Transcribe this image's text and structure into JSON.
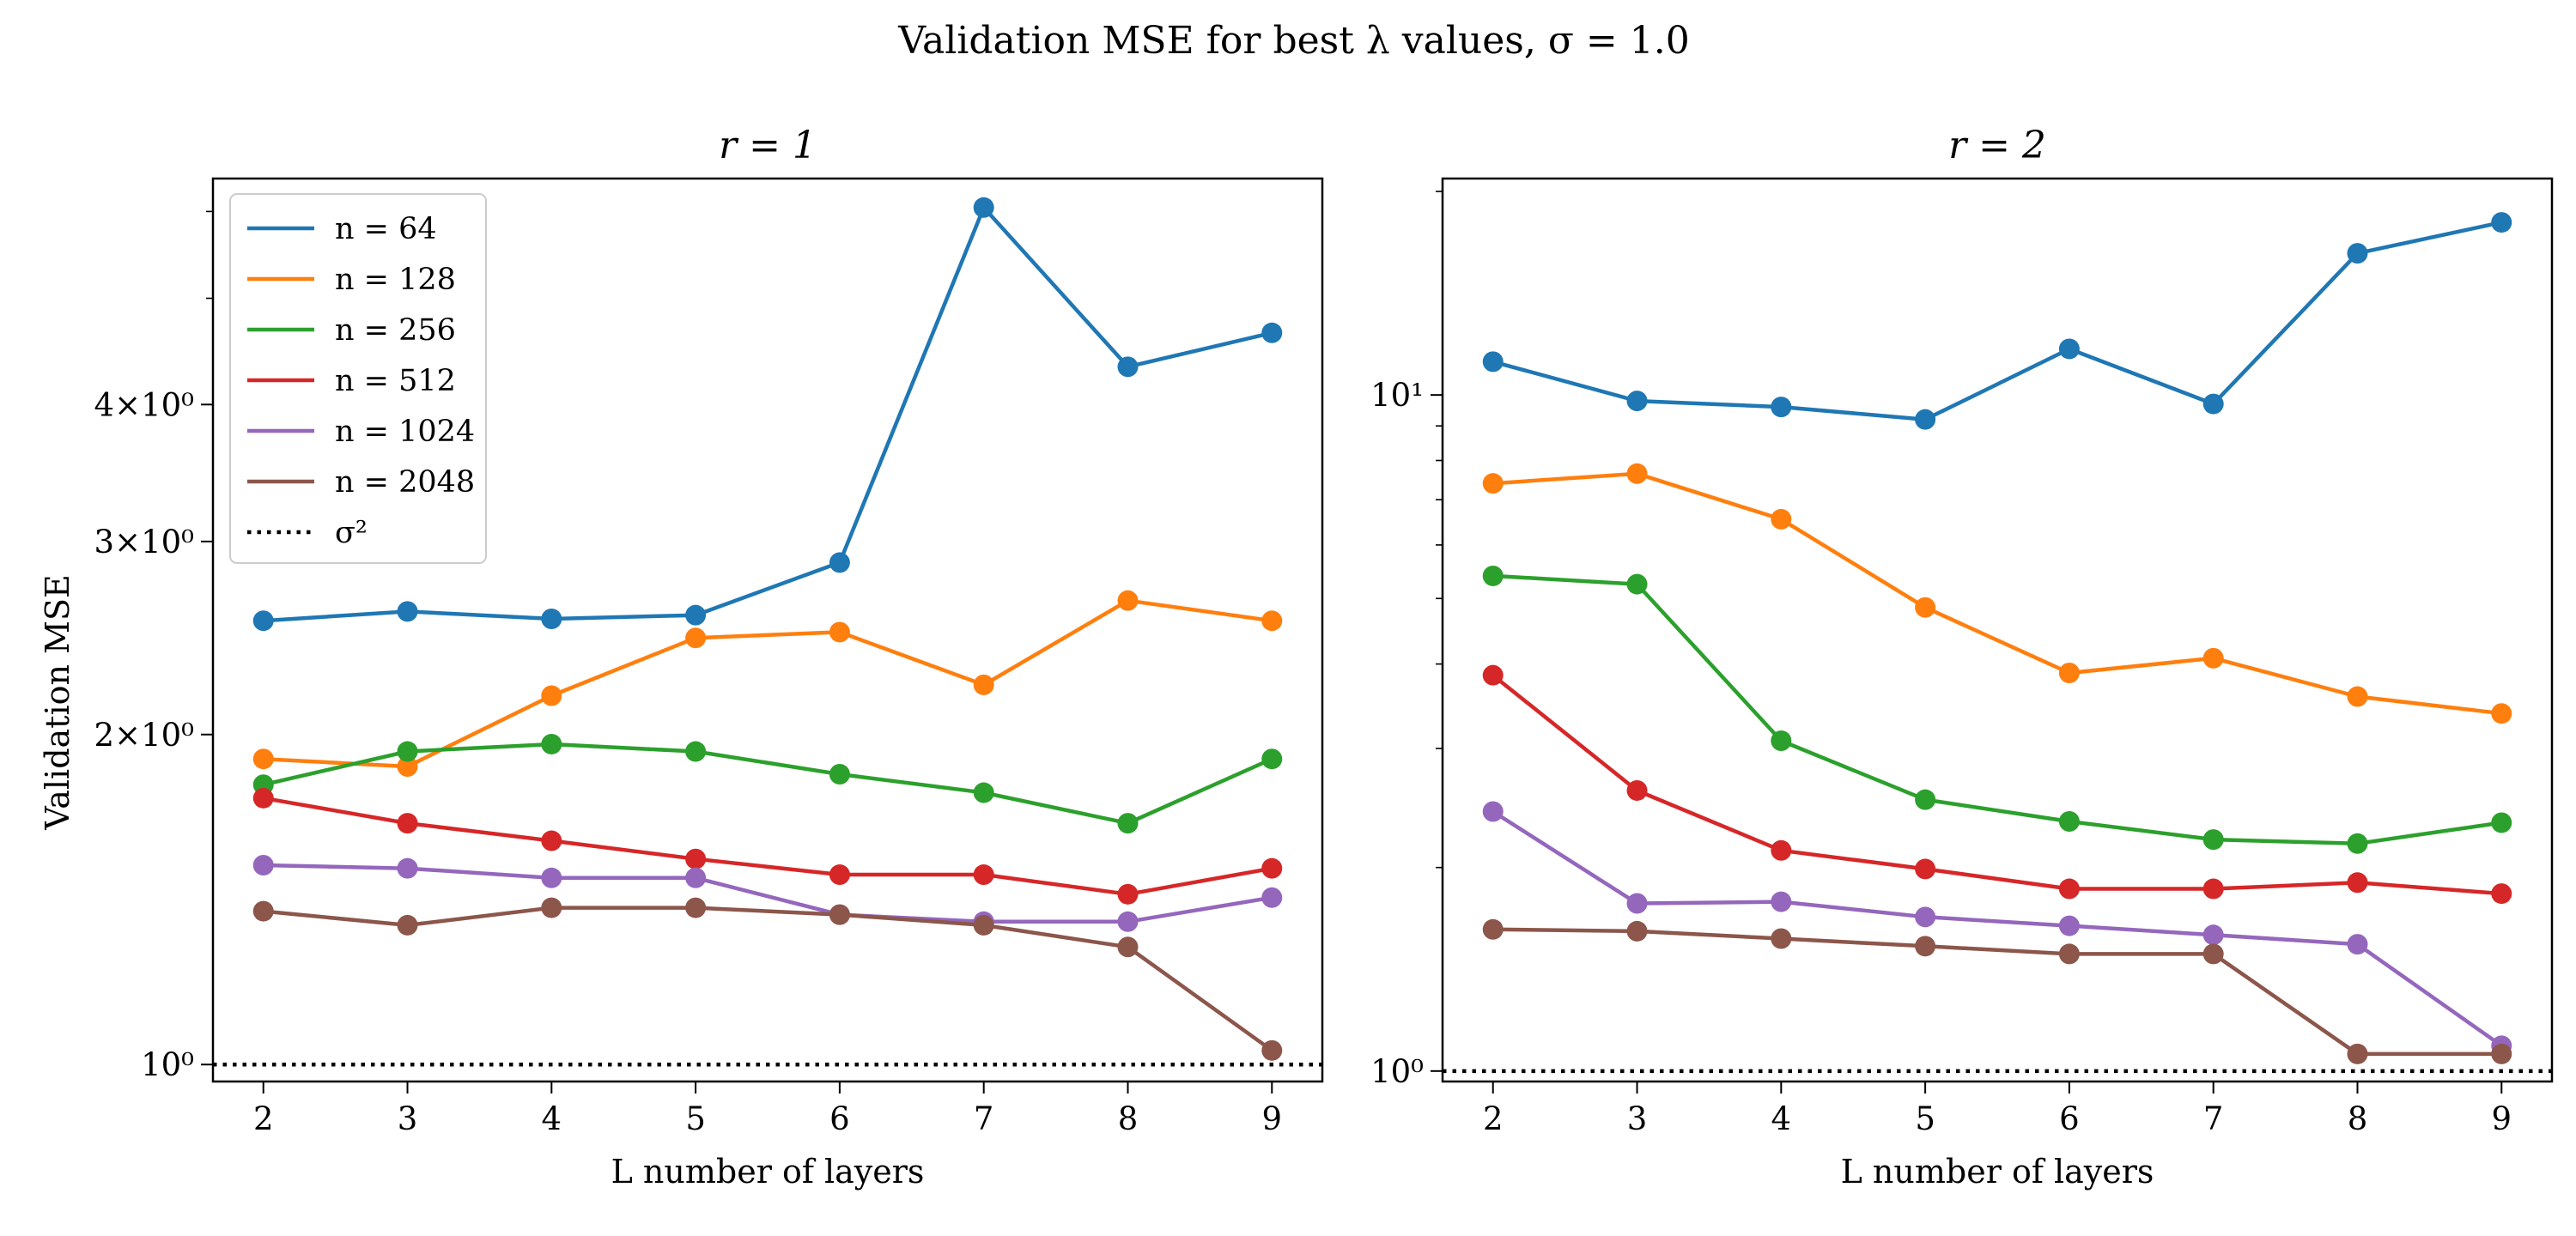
{
  "figure": {
    "title": "Validation MSE for best λ values, σ = 1.0",
    "ylabel": "Validation MSE"
  },
  "colors": {
    "n=64": "#1f77b4",
    "n=128": "#ff7f0e",
    "n=256": "#2ca02c",
    "n=512": "#d62728",
    "n=1024": "#9467bd",
    "n=2048": "#8c564b",
    "sigma2": "#000000"
  },
  "chart_data": [
    {
      "type": "line",
      "title": "r = 1",
      "xlabel": "L number of layers",
      "ylabel": "Validation MSE",
      "yscale": "log",
      "xlim": [
        1.65,
        9.35
      ],
      "ylim": [
        0.965,
        6.43
      ],
      "x": [
        2,
        3,
        4,
        5,
        6,
        7,
        8,
        9
      ],
      "xticks": [
        "2",
        "3",
        "4",
        "5",
        "6",
        "7",
        "8",
        "9"
      ],
      "yticks": [
        {
          "value": 1,
          "label": "10⁰"
        },
        {
          "value": 2,
          "label": "2×10⁰"
        },
        {
          "value": 3,
          "label": "3×10⁰"
        },
        {
          "value": 4,
          "label": "4×10⁰"
        }
      ],
      "minor_yticks": [
        5,
        6
      ],
      "series": [
        {
          "name": "n = 64",
          "color_key": "n=64",
          "values": [
            2.54,
            2.59,
            2.55,
            2.57,
            2.87,
            6.05,
            4.33,
            4.65
          ]
        },
        {
          "name": "n = 128",
          "color_key": "n=128",
          "values": [
            1.9,
            1.87,
            2.17,
            2.45,
            2.48,
            2.22,
            2.65,
            2.54
          ]
        },
        {
          "name": "n = 256",
          "color_key": "n=256",
          "values": [
            1.8,
            1.93,
            1.96,
            1.93,
            1.84,
            1.77,
            1.66,
            1.9
          ]
        },
        {
          "name": "n = 512",
          "color_key": "n=512",
          "values": [
            1.75,
            1.66,
            1.6,
            1.54,
            1.49,
            1.49,
            1.43,
            1.51
          ]
        },
        {
          "name": "n = 1024",
          "color_key": "n=1024",
          "values": [
            1.52,
            1.51,
            1.48,
            1.48,
            1.37,
            1.35,
            1.35,
            1.42
          ]
        },
        {
          "name": "n = 2048",
          "color_key": "n=2048",
          "values": [
            1.38,
            1.34,
            1.39,
            1.39,
            1.37,
            1.34,
            1.28,
            1.03
          ]
        }
      ],
      "reference_line": {
        "name": "σ²",
        "value": 1.0,
        "style": "dotted",
        "color_key": "sigma2"
      },
      "legend": "upper left"
    },
    {
      "type": "line",
      "title": "r = 2",
      "xlabel": "L number of layers",
      "ylabel": "",
      "yscale": "log",
      "xlim": [
        1.65,
        9.35
      ],
      "ylim": [
        0.965,
        20.9
      ],
      "x": [
        2,
        3,
        4,
        5,
        6,
        7,
        8,
        9
      ],
      "xticks": [
        "2",
        "3",
        "4",
        "5",
        "6",
        "7",
        "8",
        "9"
      ],
      "yticks": [
        {
          "value": 1,
          "label": "10⁰"
        },
        {
          "value": 10,
          "label": "10¹"
        }
      ],
      "minor_yticks": [
        2,
        3,
        4,
        5,
        6,
        7,
        8,
        9,
        20
      ],
      "series": [
        {
          "name": "n = 64",
          "color_key": "n=64",
          "values": [
            11.2,
            9.8,
            9.6,
            9.2,
            11.7,
            9.7,
            16.2,
            18.0
          ]
        },
        {
          "name": "n = 128",
          "color_key": "n=128",
          "values": [
            7.4,
            7.65,
            6.55,
            4.85,
            3.88,
            4.08,
            3.58,
            3.38
          ]
        },
        {
          "name": "n = 256",
          "color_key": "n=256",
          "values": [
            5.4,
            5.25,
            3.08,
            2.52,
            2.34,
            2.2,
            2.17,
            2.33
          ]
        },
        {
          "name": "n = 512",
          "color_key": "n=512",
          "values": [
            3.85,
            2.6,
            2.12,
            1.99,
            1.86,
            1.86,
            1.9,
            1.83
          ]
        },
        {
          "name": "n = 1024",
          "color_key": "n=1024",
          "values": [
            2.42,
            1.77,
            1.78,
            1.69,
            1.64,
            1.59,
            1.54,
            1.09
          ]
        },
        {
          "name": "n = 2048",
          "color_key": "n=2048",
          "values": [
            1.62,
            1.61,
            1.57,
            1.53,
            1.49,
            1.49,
            1.06,
            1.06
          ]
        }
      ],
      "reference_line": {
        "name": "σ²",
        "value": 1.0,
        "style": "dotted",
        "color_key": "sigma2"
      }
    }
  ]
}
